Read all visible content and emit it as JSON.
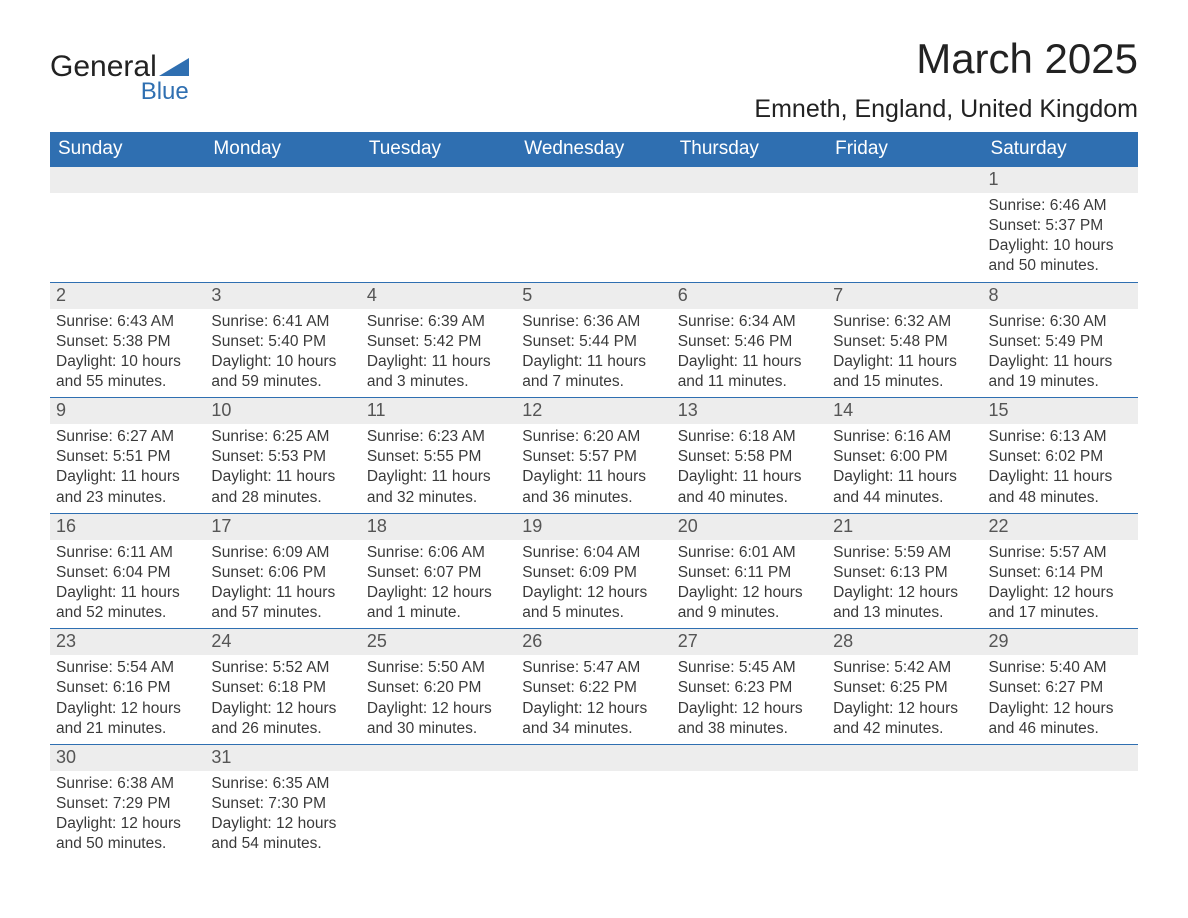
{
  "logo": {
    "text1": "General",
    "text2": "Blue",
    "triangle_color": "#2f6fb1"
  },
  "title": "March 2025",
  "subtitle": "Emneth, England, United Kingdom",
  "weekdays": [
    "Sunday",
    "Monday",
    "Tuesday",
    "Wednesday",
    "Thursday",
    "Friday",
    "Saturday"
  ],
  "colors": {
    "header_bg": "#2f6fb1",
    "header_text": "#ffffff",
    "daynum_bg": "#ededed",
    "text": "#3a3a3a",
    "rule": "#2f6fb1"
  },
  "typography": {
    "title_fontsize": 42,
    "subtitle_fontsize": 25,
    "header_fontsize": 19,
    "daynum_fontsize": 18,
    "body_fontsize": 15.5,
    "font_family": "Arial"
  },
  "weeks": [
    [
      null,
      null,
      null,
      null,
      null,
      null,
      {
        "day": "1",
        "sunrise": "Sunrise: 6:46 AM",
        "sunset": "Sunset: 5:37 PM",
        "daylight": "Daylight: 10 hours and 50 minutes."
      }
    ],
    [
      {
        "day": "2",
        "sunrise": "Sunrise: 6:43 AM",
        "sunset": "Sunset: 5:38 PM",
        "daylight": "Daylight: 10 hours and 55 minutes."
      },
      {
        "day": "3",
        "sunrise": "Sunrise: 6:41 AM",
        "sunset": "Sunset: 5:40 PM",
        "daylight": "Daylight: 10 hours and 59 minutes."
      },
      {
        "day": "4",
        "sunrise": "Sunrise: 6:39 AM",
        "sunset": "Sunset: 5:42 PM",
        "daylight": "Daylight: 11 hours and 3 minutes."
      },
      {
        "day": "5",
        "sunrise": "Sunrise: 6:36 AM",
        "sunset": "Sunset: 5:44 PM",
        "daylight": "Daylight: 11 hours and 7 minutes."
      },
      {
        "day": "6",
        "sunrise": "Sunrise: 6:34 AM",
        "sunset": "Sunset: 5:46 PM",
        "daylight": "Daylight: 11 hours and 11 minutes."
      },
      {
        "day": "7",
        "sunrise": "Sunrise: 6:32 AM",
        "sunset": "Sunset: 5:48 PM",
        "daylight": "Daylight: 11 hours and 15 minutes."
      },
      {
        "day": "8",
        "sunrise": "Sunrise: 6:30 AM",
        "sunset": "Sunset: 5:49 PM",
        "daylight": "Daylight: 11 hours and 19 minutes."
      }
    ],
    [
      {
        "day": "9",
        "sunrise": "Sunrise: 6:27 AM",
        "sunset": "Sunset: 5:51 PM",
        "daylight": "Daylight: 11 hours and 23 minutes."
      },
      {
        "day": "10",
        "sunrise": "Sunrise: 6:25 AM",
        "sunset": "Sunset: 5:53 PM",
        "daylight": "Daylight: 11 hours and 28 minutes."
      },
      {
        "day": "11",
        "sunrise": "Sunrise: 6:23 AM",
        "sunset": "Sunset: 5:55 PM",
        "daylight": "Daylight: 11 hours and 32 minutes."
      },
      {
        "day": "12",
        "sunrise": "Sunrise: 6:20 AM",
        "sunset": "Sunset: 5:57 PM",
        "daylight": "Daylight: 11 hours and 36 minutes."
      },
      {
        "day": "13",
        "sunrise": "Sunrise: 6:18 AM",
        "sunset": "Sunset: 5:58 PM",
        "daylight": "Daylight: 11 hours and 40 minutes."
      },
      {
        "day": "14",
        "sunrise": "Sunrise: 6:16 AM",
        "sunset": "Sunset: 6:00 PM",
        "daylight": "Daylight: 11 hours and 44 minutes."
      },
      {
        "day": "15",
        "sunrise": "Sunrise: 6:13 AM",
        "sunset": "Sunset: 6:02 PM",
        "daylight": "Daylight: 11 hours and 48 minutes."
      }
    ],
    [
      {
        "day": "16",
        "sunrise": "Sunrise: 6:11 AM",
        "sunset": "Sunset: 6:04 PM",
        "daylight": "Daylight: 11 hours and 52 minutes."
      },
      {
        "day": "17",
        "sunrise": "Sunrise: 6:09 AM",
        "sunset": "Sunset: 6:06 PM",
        "daylight": "Daylight: 11 hours and 57 minutes."
      },
      {
        "day": "18",
        "sunrise": "Sunrise: 6:06 AM",
        "sunset": "Sunset: 6:07 PM",
        "daylight": "Daylight: 12 hours and 1 minute."
      },
      {
        "day": "19",
        "sunrise": "Sunrise: 6:04 AM",
        "sunset": "Sunset: 6:09 PM",
        "daylight": "Daylight: 12 hours and 5 minutes."
      },
      {
        "day": "20",
        "sunrise": "Sunrise: 6:01 AM",
        "sunset": "Sunset: 6:11 PM",
        "daylight": "Daylight: 12 hours and 9 minutes."
      },
      {
        "day": "21",
        "sunrise": "Sunrise: 5:59 AM",
        "sunset": "Sunset: 6:13 PM",
        "daylight": "Daylight: 12 hours and 13 minutes."
      },
      {
        "day": "22",
        "sunrise": "Sunrise: 5:57 AM",
        "sunset": "Sunset: 6:14 PM",
        "daylight": "Daylight: 12 hours and 17 minutes."
      }
    ],
    [
      {
        "day": "23",
        "sunrise": "Sunrise: 5:54 AM",
        "sunset": "Sunset: 6:16 PM",
        "daylight": "Daylight: 12 hours and 21 minutes."
      },
      {
        "day": "24",
        "sunrise": "Sunrise: 5:52 AM",
        "sunset": "Sunset: 6:18 PM",
        "daylight": "Daylight: 12 hours and 26 minutes."
      },
      {
        "day": "25",
        "sunrise": "Sunrise: 5:50 AM",
        "sunset": "Sunset: 6:20 PM",
        "daylight": "Daylight: 12 hours and 30 minutes."
      },
      {
        "day": "26",
        "sunrise": "Sunrise: 5:47 AM",
        "sunset": "Sunset: 6:22 PM",
        "daylight": "Daylight: 12 hours and 34 minutes."
      },
      {
        "day": "27",
        "sunrise": "Sunrise: 5:45 AM",
        "sunset": "Sunset: 6:23 PM",
        "daylight": "Daylight: 12 hours and 38 minutes."
      },
      {
        "day": "28",
        "sunrise": "Sunrise: 5:42 AM",
        "sunset": "Sunset: 6:25 PM",
        "daylight": "Daylight: 12 hours and 42 minutes."
      },
      {
        "day": "29",
        "sunrise": "Sunrise: 5:40 AM",
        "sunset": "Sunset: 6:27 PM",
        "daylight": "Daylight: 12 hours and 46 minutes."
      }
    ],
    [
      {
        "day": "30",
        "sunrise": "Sunrise: 6:38 AM",
        "sunset": "Sunset: 7:29 PM",
        "daylight": "Daylight: 12 hours and 50 minutes."
      },
      {
        "day": "31",
        "sunrise": "Sunrise: 6:35 AM",
        "sunset": "Sunset: 7:30 PM",
        "daylight": "Daylight: 12 hours and 54 minutes."
      },
      null,
      null,
      null,
      null,
      null
    ]
  ]
}
